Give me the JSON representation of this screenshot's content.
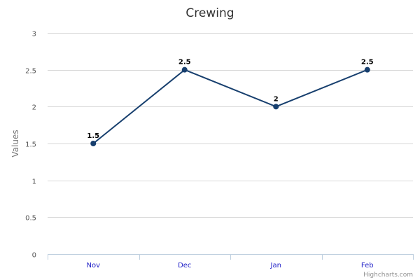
{
  "chart_data": {
    "type": "line",
    "title": "Crewing",
    "xlabel": "",
    "ylabel": "Values",
    "categories": [
      "Nov",
      "Dec",
      "Jan",
      "Feb"
    ],
    "series": [
      {
        "values": [
          1.5,
          2.5,
          2,
          2.5
        ]
      }
    ],
    "ylim": [
      0,
      3
    ],
    "yticks": [
      0,
      0.5,
      1,
      1.5,
      2,
      2.5,
      3
    ],
    "ytick_labels": [
      "0",
      "0.5",
      "1",
      "1.5",
      "2",
      "2.5",
      "3"
    ],
    "data_labels": [
      "1.5",
      "2.5",
      "2",
      "2.5"
    ],
    "grid": true,
    "legend": "none",
    "colors": {
      "series": "#173f6e",
      "grid": "#d8d8d8",
      "axis": "#c0d0e0",
      "xtick_text": "#1f1fc7"
    }
  },
  "credits": "Highcharts.com"
}
